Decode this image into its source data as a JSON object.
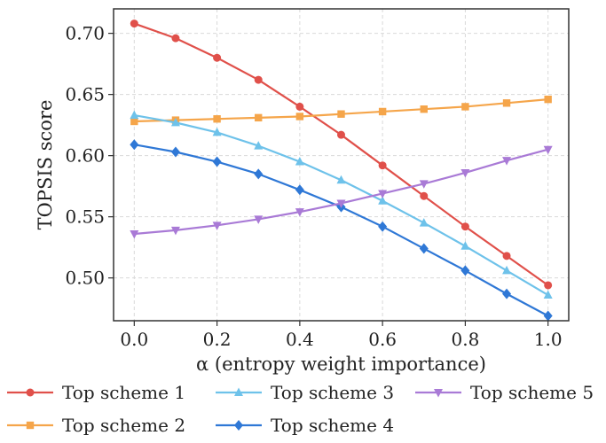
{
  "chart_data": {
    "type": "line",
    "xlabel": "α (entropy weight importance)",
    "ylabel": "TOPSIS score",
    "xlim": [
      -0.05,
      1.05
    ],
    "ylim": [
      0.465,
      0.72
    ],
    "x_ticks": [
      0.0,
      0.2,
      0.4,
      0.6,
      0.8,
      1.0
    ],
    "x_tick_labels": [
      "0.0",
      "0.2",
      "0.4",
      "0.6",
      "0.8",
      "1.0"
    ],
    "y_ticks": [
      0.5,
      0.55,
      0.6,
      0.65,
      0.7
    ],
    "y_tick_labels": [
      "0.50",
      "0.55",
      "0.60",
      "0.65",
      "0.70"
    ],
    "grid": true,
    "legend_placement": "bottom",
    "x": [
      0.0,
      0.1,
      0.2,
      0.3,
      0.4,
      0.5,
      0.6,
      0.7,
      0.8,
      0.9,
      1.0
    ],
    "series": [
      {
        "name": "Top scheme 1",
        "color": "#e0504a",
        "marker": "circle",
        "values": [
          0.708,
          0.696,
          0.68,
          0.662,
          0.64,
          0.617,
          0.592,
          0.567,
          0.542,
          0.518,
          0.494
        ]
      },
      {
        "name": "Top scheme 2",
        "color": "#f5a54a",
        "marker": "square",
        "values": [
          0.628,
          0.629,
          0.63,
          0.631,
          0.632,
          0.634,
          0.636,
          0.638,
          0.64,
          0.643,
          0.646
        ]
      },
      {
        "name": "Top scheme 3",
        "color": "#6ec2ea",
        "marker": "triangle-up",
        "values": [
          0.633,
          0.627,
          0.619,
          0.608,
          0.595,
          0.58,
          0.563,
          0.545,
          0.526,
          0.506,
          0.486
        ]
      },
      {
        "name": "Top scheme 4",
        "color": "#2f78d6",
        "marker": "diamond",
        "values": [
          0.609,
          0.603,
          0.595,
          0.585,
          0.572,
          0.558,
          0.542,
          0.524,
          0.506,
          0.487,
          0.469
        ]
      },
      {
        "name": "Top scheme 5",
        "color": "#a97ad6",
        "marker": "triangle-down",
        "values": [
          0.536,
          0.539,
          0.543,
          0.548,
          0.554,
          0.561,
          0.569,
          0.577,
          0.586,
          0.596,
          0.605
        ]
      }
    ]
  }
}
